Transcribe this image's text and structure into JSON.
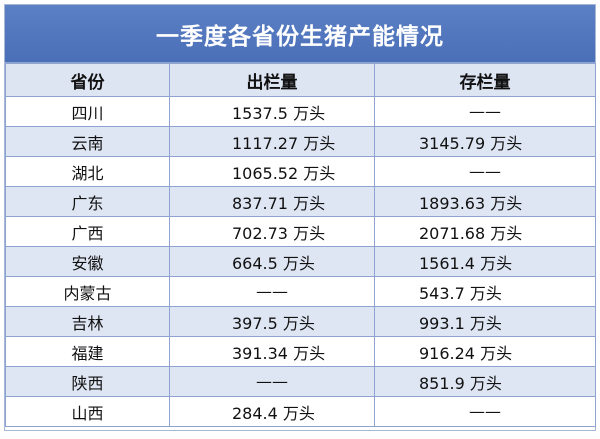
{
  "title": "一季度各省份生猪产能情况",
  "headers": [
    "省份",
    "出栏量",
    "存栏量"
  ],
  "rows": [
    {
      "province": "四川",
      "output": "1537.5 万头",
      "stock": "——"
    },
    {
      "province": "云南",
      "output": "1117.27 万头",
      "stock": "3145.79 万头"
    },
    {
      "province": "湖北",
      "output": "1065.52 万头",
      "stock": "——"
    },
    {
      "province": "广东",
      "output": "837.71 万头",
      "stock": "1893.63 万头"
    },
    {
      "province": "广西",
      "output": "702.73 万头",
      "stock": "2071.68 万头"
    },
    {
      "province": "安徽",
      "output": "664.5 万头",
      "stock": "1561.4 万头"
    },
    {
      "province": "内蒙古",
      "output": "——",
      "stock": "543.7 万头"
    },
    {
      "province": "吉林",
      "output": "397.5 万头",
      "stock": "993.1 万头"
    },
    {
      "province": "福建",
      "output": "391.34 万头",
      "stock": "916.24 万头"
    },
    {
      "province": "陕西",
      "output": "——",
      "stock": "851.9 万头"
    },
    {
      "province": "山西",
      "output": "284.4 万头",
      "stock": "——"
    }
  ]
}
